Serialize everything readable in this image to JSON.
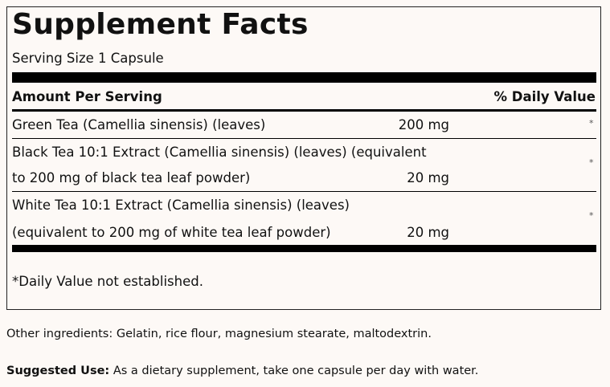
{
  "title": "Supplement Facts",
  "serving_size": "Serving Size 1 Capsule",
  "header": {
    "amount": "Amount Per Serving",
    "dv": "% Daily Value"
  },
  "rows": [
    {
      "name_lines": [
        "Green Tea (Camellia sinensis) (leaves)"
      ],
      "amount": "200 mg",
      "dv": "*"
    },
    {
      "name_lines": [
        "Black Tea 10:1 Extract (Camellia sinensis) (leaves) (equivalent",
        "to 200 mg of black tea leaf powder)"
      ],
      "amount": "20 mg",
      "dv": "*"
    },
    {
      "name_lines": [
        "White Tea 10:1 Extract (Camellia sinensis) (leaves)",
        "(equivalent to 200 mg of white tea leaf powder)"
      ],
      "amount": "20 mg",
      "dv": "*"
    }
  ],
  "footnote": "*Daily Value not established.",
  "other_ingredients": "Other ingredients: Gelatin, rice flour, magnesium stearate, maltodextrin.",
  "suggested_use": {
    "label": "Suggested Use:",
    "text": " As a dietary supplement, take one capsule per day with water."
  }
}
